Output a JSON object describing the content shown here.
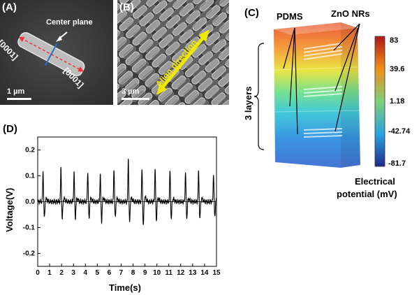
{
  "panelA": {
    "label": "(A)",
    "center_plane": "Center plane",
    "dir_left": "[0001]",
    "dir_right": "[0001]",
    "scale": "1 µm"
  },
  "panelB": {
    "label": "(B)",
    "align": "Align direction",
    "scale": "3 µm"
  },
  "panelC": {
    "label": "(C)",
    "pdms": "PDMS",
    "zno": "ZnO NRs",
    "layers": "3 layers",
    "colorbar": {
      "ticks": [
        "83",
        "39.6",
        "1.18",
        "-42.74",
        "-81.7"
      ],
      "title_line1": "Electrical",
      "title_line2": "potential (mV)"
    }
  },
  "panelD": {
    "label": "(D)",
    "chart_data": {
      "type": "line",
      "xlabel": "Time(s)",
      "ylabel": "Voltage(V)",
      "xlim": [
        0,
        15
      ],
      "ylim": [
        -0.25,
        0.25
      ],
      "xticks": [
        "0",
        "1",
        "2",
        "3",
        "4",
        "5",
        "6",
        "7",
        "8",
        "9",
        "10",
        "11",
        "12",
        "13",
        "14",
        "15"
      ],
      "yticks": [
        "0.2",
        "0.1",
        "0.0",
        "-0.1",
        "-0.2"
      ],
      "peaks": [
        {
          "t": 0.45,
          "pos": 0.12,
          "neg": -0.065
        },
        {
          "t": 1.95,
          "pos": 0.13,
          "neg": -0.07
        },
        {
          "t": 3.05,
          "pos": 0.115,
          "neg": -0.065
        },
        {
          "t": 4.2,
          "pos": 0.12,
          "neg": -0.07
        },
        {
          "t": 5.25,
          "pos": 0.11,
          "neg": -0.08
        },
        {
          "t": 6.4,
          "pos": 0.13,
          "neg": -0.065
        },
        {
          "t": 7.6,
          "pos": 0.17,
          "neg": -0.08
        },
        {
          "t": 8.75,
          "pos": 0.13,
          "neg": -0.1
        },
        {
          "t": 9.85,
          "pos": 0.13,
          "neg": -0.075
        },
        {
          "t": 11.1,
          "pos": 0.12,
          "neg": -0.07
        },
        {
          "t": 12.4,
          "pos": 0.115,
          "neg": -0.065
        },
        {
          "t": 13.5,
          "pos": 0.12,
          "neg": -0.07
        },
        {
          "t": 14.75,
          "pos": 0.11,
          "neg": -0.06
        }
      ]
    }
  }
}
